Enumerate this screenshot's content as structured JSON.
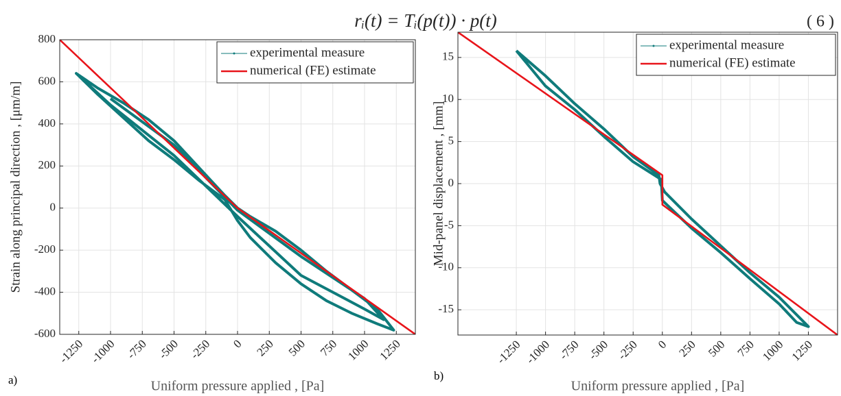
{
  "equation": "rᵢ(t) = Tᵢ(p(t)) · p(t)",
  "equation_number": "( 6 )",
  "chart_data": [
    {
      "type": "line",
      "panel_label": "a)",
      "xlabel": "Uniform pressure applied , [Pa]",
      "ylabel": "Strain along principal direction , [μm/m]",
      "xlim": [
        -1400,
        1400
      ],
      "ylim": [
        -600,
        800
      ],
      "xticks": [
        -1250,
        -1000,
        -750,
        -500,
        -250,
        0,
        250,
        500,
        750,
        1000,
        1250
      ],
      "yticks": [
        -600,
        -400,
        -200,
        0,
        200,
        400,
        600,
        800
      ],
      "grid": true,
      "legend": "upper right",
      "series": [
        {
          "name": "experimental measure",
          "color": "#0f7b7b",
          "x": [
            -1270,
            -1100,
            -900,
            -700,
            -500,
            -300,
            -100,
            0,
            100,
            300,
            500,
            700,
            900,
            1100,
            1230,
            1100,
            900,
            700,
            500,
            300,
            100,
            0,
            -100,
            -300,
            -500,
            -700,
            -900,
            -1100,
            -1270,
            -1000,
            -500,
            0,
            500,
            1000,
            1150,
            1000,
            500,
            0,
            -500,
            -1000
          ],
          "values": [
            640,
            540,
            430,
            320,
            230,
            130,
            40,
            -60,
            -140,
            -260,
            -360,
            -440,
            -500,
            -550,
            -580,
            -480,
            -390,
            -300,
            -200,
            -110,
            -40,
            0,
            60,
            190,
            320,
            420,
            500,
            570,
            640,
            490,
            250,
            -40,
            -320,
            -480,
            -530,
            -430,
            -230,
            -10,
            300,
            520
          ]
        },
        {
          "name": "numerical (FE) estimate",
          "color": "#e8141a",
          "x": [
            -1400,
            0,
            1400
          ],
          "values": [
            800,
            0,
            -600
          ]
        }
      ]
    },
    {
      "type": "line",
      "panel_label": "b)",
      "xlabel": "Uniform pressure applied , [Pa]",
      "ylabel": "Mid-panel displacement , [mm]",
      "xlim": [
        -1750,
        1500
      ],
      "ylim": [
        -18,
        18
      ],
      "xticks": [
        -1250,
        -1000,
        -750,
        -500,
        -250,
        0,
        250,
        500,
        750,
        1000,
        1250
      ],
      "yticks": [
        -15,
        -10,
        -5,
        0,
        5,
        10,
        15
      ],
      "grid": true,
      "legend": "upper right",
      "series": [
        {
          "name": "experimental measure",
          "color": "#0f7b7b",
          "x": [
            -1250,
            -1000,
            -750,
            -500,
            -250,
            -30,
            -20,
            0,
            20,
            250,
            500,
            750,
            1000,
            1250,
            1150,
            1000,
            750,
            500,
            250,
            0,
            -10,
            -250,
            -500,
            -750,
            -1000,
            -1250
          ],
          "values": [
            15.8,
            12.8,
            9.5,
            6.5,
            3.2,
            1,
            0,
            -0.5,
            -1,
            -4.2,
            -7.4,
            -10.6,
            -13.5,
            -17,
            -16.5,
            -14.3,
            -11.3,
            -8.2,
            -5.3,
            -2,
            0.5,
            2.6,
            5.6,
            8.8,
            11.6,
            15.8
          ]
        },
        {
          "name": "numerical (FE) estimate",
          "color": "#e8141a",
          "x": [
            -1750,
            0,
            0,
            1500
          ],
          "values": [
            18,
            1,
            -2.5,
            -18
          ]
        }
      ]
    }
  ]
}
